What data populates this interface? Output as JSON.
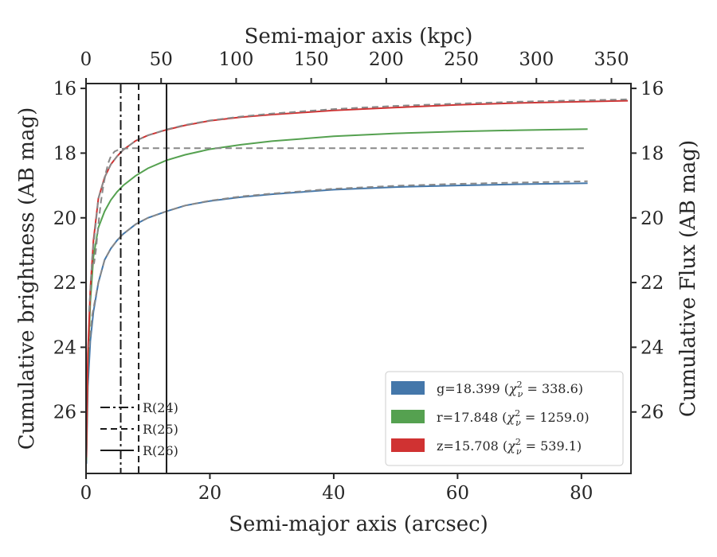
{
  "chart_data": {
    "type": "line",
    "xlabel": "Semi-major axis (arcsec)",
    "ylabel": "Cumulative brightness (AB mag)",
    "x2label": "Semi-major axis (kpc)",
    "y2label": "Cumulative Flux (AB mag)",
    "xlim": [
      0,
      88
    ],
    "ylim": [
      27.9,
      15.85
    ],
    "x2lim": [
      0,
      363
    ],
    "y_inverted": true,
    "xticks": [
      0,
      20,
      40,
      60,
      80
    ],
    "yticks": [
      16,
      18,
      20,
      22,
      24,
      26
    ],
    "x2ticks": [
      0,
      50,
      100,
      150,
      200,
      250,
      300,
      350
    ],
    "y2ticks": [
      16,
      18,
      20,
      22,
      24,
      26
    ],
    "grid": false,
    "legend_position": "bottom-right",
    "legend": [
      {
        "band": "g",
        "label": "g=18.399 ",
        "chi": "338.6",
        "color": "#4477aa"
      },
      {
        "band": "r",
        "label": "r=17.848 ",
        "chi": "1259.0",
        "color": "#55a150"
      },
      {
        "band": "z",
        "label": "z=15.708 ",
        "chi": "539.1",
        "color": "#d03232"
      }
    ],
    "chi_prefix": "(",
    "chi_symbol": "χ",
    "chi_sub": "ν",
    "chi_sup": "2",
    "chi_eq": " = ",
    "chi_suffix": ")",
    "radius_legend": [
      {
        "label": "R(24)",
        "dash": "dashdot"
      },
      {
        "label": "R(25)",
        "dash": "dashed"
      },
      {
        "label": "R(26)",
        "dash": "solid"
      }
    ],
    "radius_lines": [
      {
        "label": "R(24)",
        "x": 5.6,
        "dash": "dashdot"
      },
      {
        "label": "R(25)",
        "x": 8.5,
        "dash": "dashed"
      },
      {
        "label": "R(26)",
        "x": 13.0,
        "dash": "solid"
      }
    ],
    "series": [
      {
        "band": "g",
        "color": "#4477aa",
        "x": [
          0.05,
          0.3,
          0.7,
          1.2,
          2,
          3,
          4,
          5,
          6,
          8,
          10,
          13,
          16,
          20,
          25,
          30,
          40,
          50,
          60,
          70,
          81
        ],
        "y": [
          27.6,
          25.2,
          23.8,
          22.9,
          22.0,
          21.3,
          20.95,
          20.7,
          20.5,
          20.2,
          20.0,
          19.8,
          19.62,
          19.48,
          19.36,
          19.27,
          19.13,
          19.05,
          19.0,
          18.96,
          18.93
        ]
      },
      {
        "band": "r",
        "color": "#55a150",
        "x": [
          0.05,
          0.3,
          0.7,
          1.2,
          2,
          3,
          4,
          5,
          6,
          8,
          10,
          13,
          16,
          20,
          25,
          30,
          40,
          50,
          60,
          70,
          81
        ],
        "y": [
          27.5,
          24.6,
          22.6,
          21.2,
          20.3,
          19.8,
          19.45,
          19.2,
          19.0,
          18.7,
          18.47,
          18.22,
          18.05,
          17.88,
          17.74,
          17.63,
          17.48,
          17.39,
          17.33,
          17.29,
          17.26
        ]
      },
      {
        "band": "z",
        "color": "#d03232",
        "x": [
          0.05,
          0.3,
          0.7,
          1.2,
          2,
          3,
          4,
          5,
          6,
          8,
          10,
          13,
          16,
          20,
          25,
          30,
          40,
          50,
          60,
          70,
          80,
          87.5
        ],
        "y": [
          27.4,
          24.2,
          22.2,
          20.7,
          19.4,
          18.75,
          18.35,
          18.1,
          17.9,
          17.62,
          17.45,
          17.28,
          17.14,
          17.0,
          16.89,
          16.81,
          16.68,
          16.59,
          16.51,
          16.45,
          16.41,
          16.38
        ]
      }
    ],
    "model_series": [
      {
        "band": "g-model",
        "x": [
          0.5,
          1,
          2,
          3,
          4,
          5,
          6,
          8,
          10,
          13,
          16,
          20,
          25,
          30,
          40,
          50,
          60,
          70,
          81
        ],
        "y": [
          24.0,
          23.0,
          22.0,
          21.3,
          20.95,
          20.7,
          20.5,
          20.2,
          20.0,
          19.8,
          19.62,
          19.47,
          19.34,
          19.25,
          19.1,
          19.01,
          18.95,
          18.91,
          18.87
        ]
      },
      {
        "band": "r-model",
        "x": [
          1,
          1.3,
          1.6,
          2,
          2.4,
          2.8,
          3.2,
          3.6,
          4,
          4.6,
          5.5,
          7,
          10,
          20,
          40,
          60,
          81
        ],
        "y": [
          21.4,
          21.4,
          21.0,
          20.2,
          19.5,
          19.0,
          18.6,
          18.3,
          18.1,
          17.95,
          17.87,
          17.85,
          17.85,
          17.85,
          17.85,
          17.85,
          17.85
        ]
      },
      {
        "band": "z-model",
        "x": [
          0.5,
          1,
          2,
          3,
          4,
          5,
          6,
          8,
          10,
          13,
          16,
          20,
          25,
          30,
          40,
          50,
          60,
          70,
          80,
          87.5
        ],
        "y": [
          22.9,
          21.2,
          19.4,
          18.75,
          18.35,
          18.1,
          17.9,
          17.62,
          17.45,
          17.27,
          17.13,
          16.99,
          16.87,
          16.78,
          16.64,
          16.54,
          16.47,
          16.41,
          16.37,
          16.34
        ]
      }
    ]
  }
}
